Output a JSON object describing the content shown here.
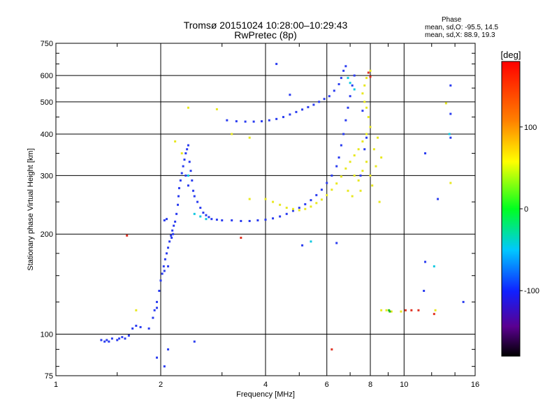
{
  "chart_data": {
    "type": "scatter",
    "title": "Tromsø 20151024  10:28:00–10:29:43",
    "subtitle": "RwPretec (8p)",
    "xlabel": "Frequency [MHz]",
    "ylabel": "Stationary phase Virtual Height [km]",
    "x_scale": "log",
    "y_scale": "log",
    "xlim": [
      1,
      16
    ],
    "ylim": [
      75,
      750
    ],
    "x_ticks": [
      1,
      2,
      4,
      6,
      8,
      10,
      16
    ],
    "x_tick_labels": [
      "1",
      "2",
      "4",
      "6",
      "8",
      "10",
      "16"
    ],
    "y_ticks": [
      75,
      100,
      200,
      300,
      400,
      500,
      600,
      750
    ],
    "y_tick_labels": [
      "75",
      "100",
      "200",
      "300",
      "400",
      "500",
      "600",
      "750"
    ],
    "grid": true,
    "colorbar": {
      "label": "[deg]",
      "ticks": [
        100,
        0,
        -100
      ],
      "tick_labels": [
        "100",
        "0",
        "-100"
      ],
      "range": [
        -180,
        180
      ]
    },
    "stats": {
      "heading": "Phase",
      "o_line": "mean, sd,O:  -95.5,  14.5",
      "x_line": "mean, sd,X:   88.9,  19.3"
    },
    "series": [
      {
        "color": "#2a3cf0",
        "points": [
          [
            1.35,
            96
          ],
          [
            1.38,
            95
          ],
          [
            1.4,
            96
          ],
          [
            1.42,
            95
          ],
          [
            1.45,
            97
          ],
          [
            1.5,
            96
          ],
          [
            1.52,
            97
          ],
          [
            1.55,
            98
          ],
          [
            1.58,
            97
          ],
          [
            1.62,
            99
          ],
          [
            1.66,
            104
          ],
          [
            1.7,
            106
          ],
          [
            1.75,
            105
          ],
          [
            1.85,
            104
          ],
          [
            1.9,
            112
          ],
          [
            1.92,
            118
          ],
          [
            1.95,
            125
          ],
          [
            1.98,
            135
          ],
          [
            2.0,
            145
          ],
          [
            2.02,
            152
          ],
          [
            2.04,
            160
          ],
          [
            2.06,
            168
          ],
          [
            2.08,
            175
          ],
          [
            2.1,
            182
          ],
          [
            2.12,
            190
          ],
          [
            2.14,
            198
          ],
          [
            2.16,
            205
          ],
          [
            2.18,
            212
          ],
          [
            1.95,
            120
          ],
          [
            2.05,
            155
          ],
          [
            2.1,
            160
          ],
          [
            2.15,
            195
          ],
          [
            2.17,
            200
          ],
          [
            2.2,
            218
          ],
          [
            2.05,
            220
          ],
          [
            2.08,
            222
          ],
          [
            2.22,
            230
          ],
          [
            2.24,
            245
          ],
          [
            2.25,
            260
          ],
          [
            2.26,
            275
          ],
          [
            2.28,
            290
          ],
          [
            2.3,
            305
          ],
          [
            2.32,
            320
          ],
          [
            2.34,
            335
          ],
          [
            2.36,
            350
          ],
          [
            2.38,
            360
          ],
          [
            2.4,
            370
          ],
          [
            2.36,
            300
          ],
          [
            2.4,
            280
          ],
          [
            2.42,
            330
          ],
          [
            2.44,
            310
          ],
          [
            2.46,
            290
          ],
          [
            2.48,
            270
          ],
          [
            2.5,
            260
          ],
          [
            2.55,
            250
          ],
          [
            2.6,
            240
          ],
          [
            2.65,
            232
          ],
          [
            2.7,
            228
          ],
          [
            2.75,
            225
          ],
          [
            2.8,
            222
          ],
          [
            2.9,
            221
          ],
          [
            3.0,
            220
          ],
          [
            3.2,
            220
          ],
          [
            3.4,
            219
          ],
          [
            3.6,
            219
          ],
          [
            3.8,
            220
          ],
          [
            4.0,
            221
          ],
          [
            4.2,
            223
          ],
          [
            4.4,
            226
          ],
          [
            4.6,
            230
          ],
          [
            4.8,
            235
          ],
          [
            5.0,
            240
          ],
          [
            5.2,
            246
          ],
          [
            5.4,
            253
          ],
          [
            5.6,
            262
          ],
          [
            5.8,
            272
          ],
          [
            6.0,
            285
          ],
          [
            6.2,
            300
          ],
          [
            6.4,
            320
          ],
          [
            6.5,
            340
          ],
          [
            6.6,
            370
          ],
          [
            6.7,
            400
          ],
          [
            6.8,
            440
          ],
          [
            6.9,
            480
          ],
          [
            7.0,
            520
          ],
          [
            7.1,
            560
          ],
          [
            7.2,
            600
          ],
          [
            3.1,
            440
          ],
          [
            3.3,
            437
          ],
          [
            3.5,
            436
          ],
          [
            3.7,
            436
          ],
          [
            3.9,
            437
          ],
          [
            4.1,
            440
          ],
          [
            4.3,
            444
          ],
          [
            4.5,
            450
          ],
          [
            4.7,
            458
          ],
          [
            4.9,
            466
          ],
          [
            5.1,
            474
          ],
          [
            5.3,
            482
          ],
          [
            5.5,
            490
          ],
          [
            5.7,
            500
          ],
          [
            5.9,
            510
          ],
          [
            6.1,
            520
          ],
          [
            6.3,
            540
          ],
          [
            6.5,
            565
          ],
          [
            6.6,
            590
          ],
          [
            6.7,
            620
          ],
          [
            6.8,
            640
          ],
          [
            4.3,
            650
          ],
          [
            4.7,
            525
          ],
          [
            5.1,
            185
          ],
          [
            6.4,
            188
          ],
          [
            7.6,
            470
          ],
          [
            7.8,
            390
          ],
          [
            7.5,
            300
          ],
          [
            7.7,
            360
          ],
          [
            13.6,
            560
          ],
          [
            13.6,
            390
          ],
          [
            13.6,
            460
          ],
          [
            11.5,
            350
          ],
          [
            14.8,
            125
          ],
          [
            11.4,
            135
          ],
          [
            11.5,
            165
          ],
          [
            12.5,
            255
          ],
          [
            2.5,
            95
          ],
          [
            2.1,
            90
          ],
          [
            1.95,
            85
          ],
          [
            2.05,
            80
          ]
        ]
      },
      {
        "color": "#e8e820",
        "points": [
          [
            4.0,
            255
          ],
          [
            4.2,
            250
          ],
          [
            4.4,
            245
          ],
          [
            4.6,
            240
          ],
          [
            4.8,
            238
          ],
          [
            5.0,
            236
          ],
          [
            5.2,
            238
          ],
          [
            5.4,
            242
          ],
          [
            5.6,
            248
          ],
          [
            5.8,
            254
          ],
          [
            6.0,
            262
          ],
          [
            6.2,
            272
          ],
          [
            6.4,
            284
          ],
          [
            6.6,
            298
          ],
          [
            6.8,
            315
          ],
          [
            7.0,
            330
          ],
          [
            7.2,
            345
          ],
          [
            7.4,
            360
          ],
          [
            7.6,
            380
          ],
          [
            7.8,
            400
          ],
          [
            8.0,
            420
          ],
          [
            7.9,
            450
          ],
          [
            7.8,
            480
          ],
          [
            7.7,
            500
          ],
          [
            7.6,
            530
          ],
          [
            7.7,
            560
          ],
          [
            7.8,
            590
          ],
          [
            8.0,
            620
          ],
          [
            7.2,
            300
          ],
          [
            7.4,
            290
          ],
          [
            7.6,
            310
          ],
          [
            7.8,
            330
          ],
          [
            8.2,
            360
          ],
          [
            8.0,
            300
          ],
          [
            8.1,
            280
          ],
          [
            8.3,
            320
          ],
          [
            7.5,
            270
          ],
          [
            7.1,
            260
          ],
          [
            6.9,
            270
          ],
          [
            8.4,
            390
          ],
          [
            8.6,
            340
          ],
          [
            8.5,
            250
          ],
          [
            8.6,
            118
          ],
          [
            8.9,
            118
          ],
          [
            9.2,
            117
          ],
          [
            9.8,
            117
          ],
          [
            2.3,
            350
          ],
          [
            2.2,
            380
          ],
          [
            2.4,
            480
          ],
          [
            2.9,
            475
          ],
          [
            3.2,
            400
          ],
          [
            3.6,
            390
          ],
          [
            1.7,
            118
          ],
          [
            12.3,
            118
          ],
          [
            13.2,
            495
          ],
          [
            13.6,
            285
          ],
          [
            3.6,
            255
          ]
        ]
      },
      {
        "color": "#10c8e0",
        "points": [
          [
            2.4,
            300
          ],
          [
            2.5,
            230
          ],
          [
            2.6,
            226
          ],
          [
            2.7,
            222
          ],
          [
            6.9,
            590
          ],
          [
            7.0,
            570
          ],
          [
            7.2,
            545
          ],
          [
            5.4,
            190
          ],
          [
            12.2,
            160
          ],
          [
            13.5,
            400
          ]
        ]
      },
      {
        "color": "#e03020",
        "points": [
          [
            10.1,
            118
          ],
          [
            10.5,
            118
          ],
          [
            11.0,
            118
          ],
          [
            12.2,
            115
          ],
          [
            3.4,
            195
          ],
          [
            1.6,
            198
          ],
          [
            7.9,
            612
          ],
          [
            8.0,
            595
          ],
          [
            6.2,
            90
          ]
        ]
      },
      {
        "color": "#20c020",
        "points": [
          [
            9.05,
            118
          ],
          [
            9.1,
            117
          ]
        ]
      }
    ]
  }
}
